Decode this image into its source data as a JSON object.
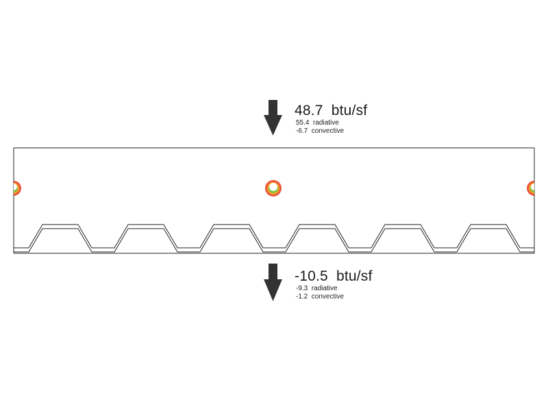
{
  "top_flux": {
    "total_value": "48.7",
    "total_unit": "btu/sf",
    "radiative_value": "55.4",
    "radiative_label": "radiative",
    "convective_value": "-6.7",
    "convective_label": "convective"
  },
  "bottom_flux": {
    "total_value": "-10.5",
    "total_unit": "btu/sf",
    "radiative_value": "-9.3",
    "radiative_label": "radiative",
    "convective_value": "-1.2",
    "convective_label": "convective"
  },
  "colors": {
    "arrow": "#333333",
    "outline": "#222222",
    "ring_outer": "#e8381c",
    "ring_mid": "#f5a623",
    "ring_inner": "#7ac143"
  },
  "icons": {
    "top_arrow": "down-arrow-icon",
    "bottom_arrow": "down-arrow-icon",
    "hot_spot": "circular-hot-spot-icon"
  }
}
